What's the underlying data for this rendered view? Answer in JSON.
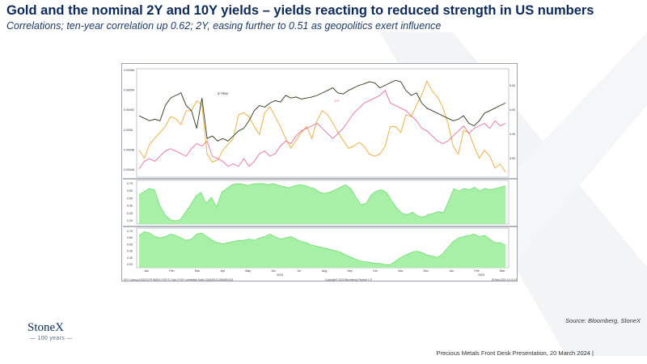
{
  "header": {
    "title": "Gold and the nominal 2Y and 10Y yields – yields reacting to reduced strength in US numbers",
    "subtitle": "Correlations; ten-year correlation up 0.62; 2Y, easing further to 0.51 as geopolitics exert influence"
  },
  "colors": {
    "title": "#0b2a5b",
    "gold": "#f0a830",
    "two_year": "#2b3a1a",
    "ten_year": "#f06aa0",
    "corr_fill": "#a8f0a8",
    "corr_line": "#4fd84f"
  },
  "chart_data": [
    {
      "type": "line",
      "series": [
        {
          "name": "",
          "color": "#f0a830",
          "axis": "left",
          "values": [
            1890,
            1870,
            1905,
            1920,
            1935,
            1950,
            1975,
            1970,
            1955,
            1990,
            1990,
            2015,
            2005,
            1880,
            1860,
            1865,
            1890,
            1905,
            1920,
            1980,
            1985,
            1975,
            1950,
            1930,
            1985,
            2000,
            1975,
            1950,
            1920,
            1895,
            1915,
            1935,
            1950,
            1920,
            1965,
            1990,
            1980,
            1960,
            1935,
            1915,
            1895,
            1900,
            1910,
            1900,
            1880,
            1875,
            1880,
            1900,
            1950,
            1950,
            1935,
            1980,
            1975,
            2005,
            2030,
            2065,
            2040,
            2025,
            2000,
            1960,
            1900,
            1880,
            1940,
            1935,
            1900,
            1870,
            1890,
            1875,
            1845,
            1855,
            1835
          ]
        },
        {
          "name": "2-Year",
          "color": "#2b3a1a",
          "axis": "right",
          "values": [
            4.45,
            4.4,
            4.35,
            4.38,
            4.35,
            4.65,
            4.8,
            4.85,
            4.9,
            4.65,
            4.55,
            4.2,
            4.8,
            4.0,
            4.05,
            3.95,
            4.0,
            3.95,
            4.05,
            4.15,
            4.2,
            4.35,
            4.55,
            4.65,
            4.62,
            4.7,
            4.75,
            4.72,
            4.85,
            4.8,
            4.82,
            4.78,
            4.8,
            4.82,
            4.85,
            4.9,
            4.95,
            5.0,
            4.9,
            4.88,
            4.95,
            5.0,
            5.05,
            5.08,
            5.12,
            5.1,
            5.0,
            5.05,
            5.1,
            5.15,
            5.12,
            4.95,
            4.85,
            4.9,
            4.7,
            4.6,
            4.55,
            4.5,
            4.45,
            4.4,
            4.35,
            4.38,
            4.45,
            4.3,
            4.25,
            4.35,
            4.5,
            4.55,
            4.6,
            4.65,
            4.7
          ]
        },
        {
          "name": "10Y",
          "color": "#f06aa0",
          "axis": "right",
          "values": [
            3.4,
            3.55,
            3.6,
            3.55,
            3.65,
            3.75,
            3.8,
            3.75,
            3.7,
            3.65,
            3.8,
            3.9,
            3.85,
            3.95,
            3.65,
            3.6,
            3.55,
            3.45,
            3.5,
            3.45,
            3.6,
            3.45,
            3.55,
            3.7,
            3.75,
            3.65,
            3.7,
            3.85,
            3.95,
            3.9,
            4.05,
            4.15,
            4.2,
            4.25,
            4.3,
            4.2,
            4.1,
            4.0,
            4.1,
            4.2,
            4.35,
            4.5,
            4.6,
            4.7,
            4.75,
            4.8,
            4.85,
            4.95,
            4.7,
            4.65,
            4.6,
            4.55,
            4.45,
            4.35,
            4.2,
            4.15,
            4.05,
            3.95,
            3.9,
            3.95,
            4.05,
            4.15,
            4.25,
            4.1,
            4.2,
            4.25,
            4.3,
            4.2,
            4.35,
            4.25,
            4.3
          ]
        }
      ],
      "y_left_ticks": [
        "0.00056",
        "0.00054",
        "0.00052",
        "0.0005",
        "0.00048",
        "0.00046"
      ],
      "y_right_ticks": [
        "5.00",
        "4.50",
        "4.00",
        "3.50"
      ],
      "grid": false
    },
    {
      "type": "area",
      "values": [
        0.62,
        0.67,
        0.72,
        0.7,
        0.45,
        0.3,
        0.22,
        0.2,
        0.22,
        0.34,
        0.46,
        0.6,
        0.66,
        0.48,
        0.58,
        0.42,
        0.66,
        0.72,
        0.78,
        0.8,
        0.79,
        0.77,
        0.79,
        0.8,
        0.8,
        0.78,
        0.8,
        0.77,
        0.75,
        0.73,
        0.76,
        0.78,
        0.77,
        0.74,
        0.72,
        0.66,
        0.64,
        0.66,
        0.7,
        0.74,
        0.78,
        0.72,
        0.58,
        0.46,
        0.48,
        0.62,
        0.68,
        0.7,
        0.65,
        0.52,
        0.4,
        0.32,
        0.3,
        0.34,
        0.28,
        0.26,
        0.3,
        0.32,
        0.35,
        0.33,
        0.52,
        0.72,
        0.68,
        0.72,
        0.7,
        0.74,
        0.68,
        0.72,
        0.7,
        0.72,
        0.74,
        0.76
      ],
      "y_ticks": [
        "0.70",
        "0.60",
        "0.50",
        "0.40",
        "0.30",
        "0.20"
      ],
      "ylim": [
        0.15,
        0.85
      ]
    },
    {
      "type": "area",
      "values": [
        0.68,
        0.74,
        0.72,
        0.66,
        0.64,
        0.66,
        0.7,
        0.68,
        0.64,
        0.6,
        0.62,
        0.7,
        0.72,
        0.66,
        0.6,
        0.56,
        0.54,
        0.56,
        0.58,
        0.6,
        0.6,
        0.62,
        0.6,
        0.64,
        0.66,
        0.7,
        0.66,
        0.62,
        0.64,
        0.66,
        0.62,
        0.58,
        0.56,
        0.52,
        0.5,
        0.48,
        0.46,
        0.44,
        0.42,
        0.38,
        0.34,
        0.3,
        0.27,
        0.25,
        0.24,
        0.22,
        0.22,
        0.2,
        0.2,
        0.26,
        0.32,
        0.36,
        0.4,
        0.42,
        0.4,
        0.36,
        0.34,
        0.32,
        0.38,
        0.48,
        0.58,
        0.64,
        0.66,
        0.68,
        0.7,
        0.66,
        0.68,
        0.62,
        0.56,
        0.56,
        0.52
      ],
      "y_ticks": [
        "0.70",
        "0.60",
        "0.50",
        "0.40",
        "0.30",
        "0.20"
      ],
      "ylim": [
        0.15,
        0.8
      ]
    }
  ],
  "chart_x_axis": {
    "months": [
      "Jan",
      "Feb",
      "Mar",
      "Apr",
      "May",
      "Jun",
      "Jul",
      "Aug",
      "Sep",
      "Oct",
      "Nov",
      "Dec",
      "Jan",
      "Feb",
      "Mar"
    ],
    "years": [
      "2023",
      "2024"
    ]
  },
  "chart_footer": {
    "left": "DXY Curncy (USGG2YR INDEX 2Y5YT) Gold 2Y10Y correlation   Daily 13JAN2023-20MAR2024",
    "center": "Copyright© 2024 Bloomberg Finance L.P.",
    "right": "20-Mar-2024 11:12:13"
  },
  "source": "Source: Bloomberg, StoneX",
  "logo": {
    "name": "StoneX",
    "years": "100 years"
  },
  "footer": {
    "text": "Precious Metals Front Desk Presentation, 20 March 2024 |"
  }
}
